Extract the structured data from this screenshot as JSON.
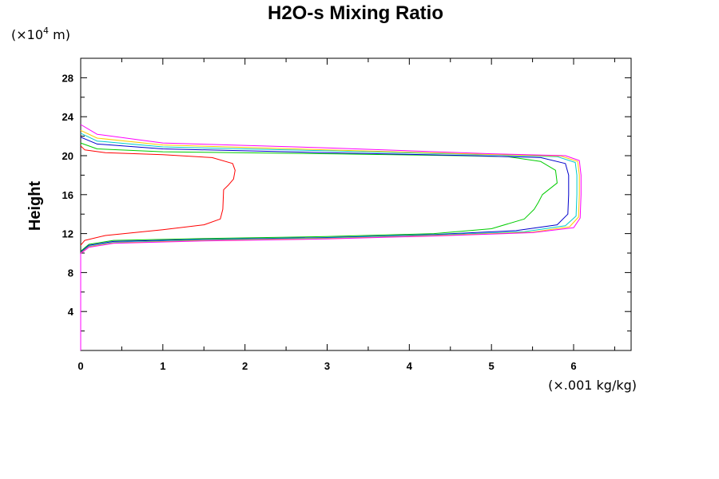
{
  "chart_data": {
    "type": "line",
    "title": "H2O-s Mixing Ratio",
    "ylabel": "Height",
    "y_unit": "(×10",
    "y_unit_exp": "4",
    "y_unit_tail": " m)",
    "x_unit": "(×.001 kg/kg)",
    "xlim": [
      0,
      6.7
    ],
    "ylim": [
      0,
      30
    ],
    "x_ticks": [
      "0",
      "1",
      "2",
      "3",
      "4",
      "5",
      "6"
    ],
    "y_ticks": [
      "4",
      "8",
      "12",
      "16",
      "20",
      "24",
      "28"
    ],
    "grid": false,
    "series": [
      {
        "color": "#ff0000",
        "points": [
          [
            0,
            10.8
          ],
          [
            0.05,
            11.3
          ],
          [
            0.3,
            11.8
          ],
          [
            1.0,
            12.4
          ],
          [
            1.5,
            12.9
          ],
          [
            1.7,
            13.5
          ],
          [
            1.73,
            14.5
          ],
          [
            1.74,
            16.5
          ],
          [
            1.8,
            17.0
          ],
          [
            1.86,
            17.6
          ],
          [
            1.88,
            18.5
          ],
          [
            1.85,
            19.2
          ],
          [
            1.6,
            19.8
          ],
          [
            1.0,
            20.1
          ],
          [
            0.3,
            20.3
          ],
          [
            0.05,
            20.6
          ],
          [
            0,
            21.0
          ]
        ]
      },
      {
        "color": "#00cc00",
        "points": [
          [
            0,
            10.2
          ],
          [
            0.1,
            10.9
          ],
          [
            0.4,
            11.3
          ],
          [
            1.5,
            11.5
          ],
          [
            3.0,
            11.7
          ],
          [
            4.3,
            12.0
          ],
          [
            5.0,
            12.5
          ],
          [
            5.4,
            13.5
          ],
          [
            5.52,
            14.5
          ],
          [
            5.57,
            15.2
          ],
          [
            5.62,
            16.0
          ],
          [
            5.8,
            17.2
          ],
          [
            5.78,
            18.5
          ],
          [
            5.6,
            19.4
          ],
          [
            5.2,
            19.9
          ],
          [
            4.6,
            20.0
          ],
          [
            3.0,
            20.2
          ],
          [
            1.0,
            20.4
          ],
          [
            0.2,
            20.7
          ],
          [
            0,
            21.3
          ]
        ]
      },
      {
        "color": "#0000cc",
        "points": [
          [
            0,
            10.1
          ],
          [
            0.1,
            10.8
          ],
          [
            0.4,
            11.2
          ],
          [
            1.5,
            11.4
          ],
          [
            3.0,
            11.6
          ],
          [
            4.3,
            11.9
          ],
          [
            5.3,
            12.3
          ],
          [
            5.8,
            12.9
          ],
          [
            5.93,
            14.0
          ],
          [
            5.94,
            16.0
          ],
          [
            5.94,
            18.0
          ],
          [
            5.9,
            19.2
          ],
          [
            5.6,
            19.8
          ],
          [
            4.8,
            20.0
          ],
          [
            3.0,
            20.3
          ],
          [
            1.0,
            20.7
          ],
          [
            0.2,
            21.2
          ],
          [
            0,
            21.9
          ]
        ]
      },
      {
        "color": "#00cccc",
        "points": [
          [
            0,
            10.0
          ],
          [
            0.1,
            10.7
          ],
          [
            0.4,
            11.1
          ],
          [
            1.5,
            11.35
          ],
          [
            3.0,
            11.55
          ],
          [
            4.3,
            11.85
          ],
          [
            5.4,
            12.2
          ],
          [
            5.9,
            12.8
          ],
          [
            6.03,
            13.8
          ],
          [
            6.04,
            16.0
          ],
          [
            6.04,
            18.0
          ],
          [
            6.02,
            19.3
          ],
          [
            5.8,
            19.9
          ],
          [
            4.9,
            20.1
          ],
          [
            3.0,
            20.5
          ],
          [
            1.0,
            20.9
          ],
          [
            0.2,
            21.5
          ],
          [
            0,
            22.3
          ]
        ]
      },
      {
        "color": "#ffcc00",
        "points": [
          [
            0,
            10.0
          ],
          [
            0.1,
            10.65
          ],
          [
            0.4,
            11.05
          ],
          [
            1.5,
            11.3
          ],
          [
            3.0,
            11.5
          ],
          [
            4.3,
            11.8
          ],
          [
            5.5,
            12.15
          ],
          [
            5.95,
            12.7
          ],
          [
            6.06,
            13.7
          ],
          [
            6.07,
            16.0
          ],
          [
            6.07,
            18.0
          ],
          [
            6.05,
            19.4
          ],
          [
            5.85,
            19.95
          ],
          [
            4.9,
            20.15
          ],
          [
            3.0,
            20.6
          ],
          [
            1.0,
            21.1
          ],
          [
            0.2,
            21.8
          ],
          [
            0,
            22.6
          ]
        ]
      },
      {
        "color": "#ff00ff",
        "points": [
          [
            0,
            9.95
          ],
          [
            0.1,
            10.6
          ],
          [
            0.4,
            11.0
          ],
          [
            1.5,
            11.25
          ],
          [
            3.0,
            11.45
          ],
          [
            4.3,
            11.75
          ],
          [
            5.5,
            12.1
          ],
          [
            6.0,
            12.6
          ],
          [
            6.08,
            13.6
          ],
          [
            6.09,
            16.0
          ],
          [
            6.09,
            18.0
          ],
          [
            6.07,
            19.5
          ],
          [
            5.9,
            20.0
          ],
          [
            5.0,
            20.2
          ],
          [
            3.0,
            20.8
          ],
          [
            1.0,
            21.3
          ],
          [
            0.2,
            22.2
          ],
          [
            0,
            23.2
          ]
        ]
      }
    ]
  }
}
